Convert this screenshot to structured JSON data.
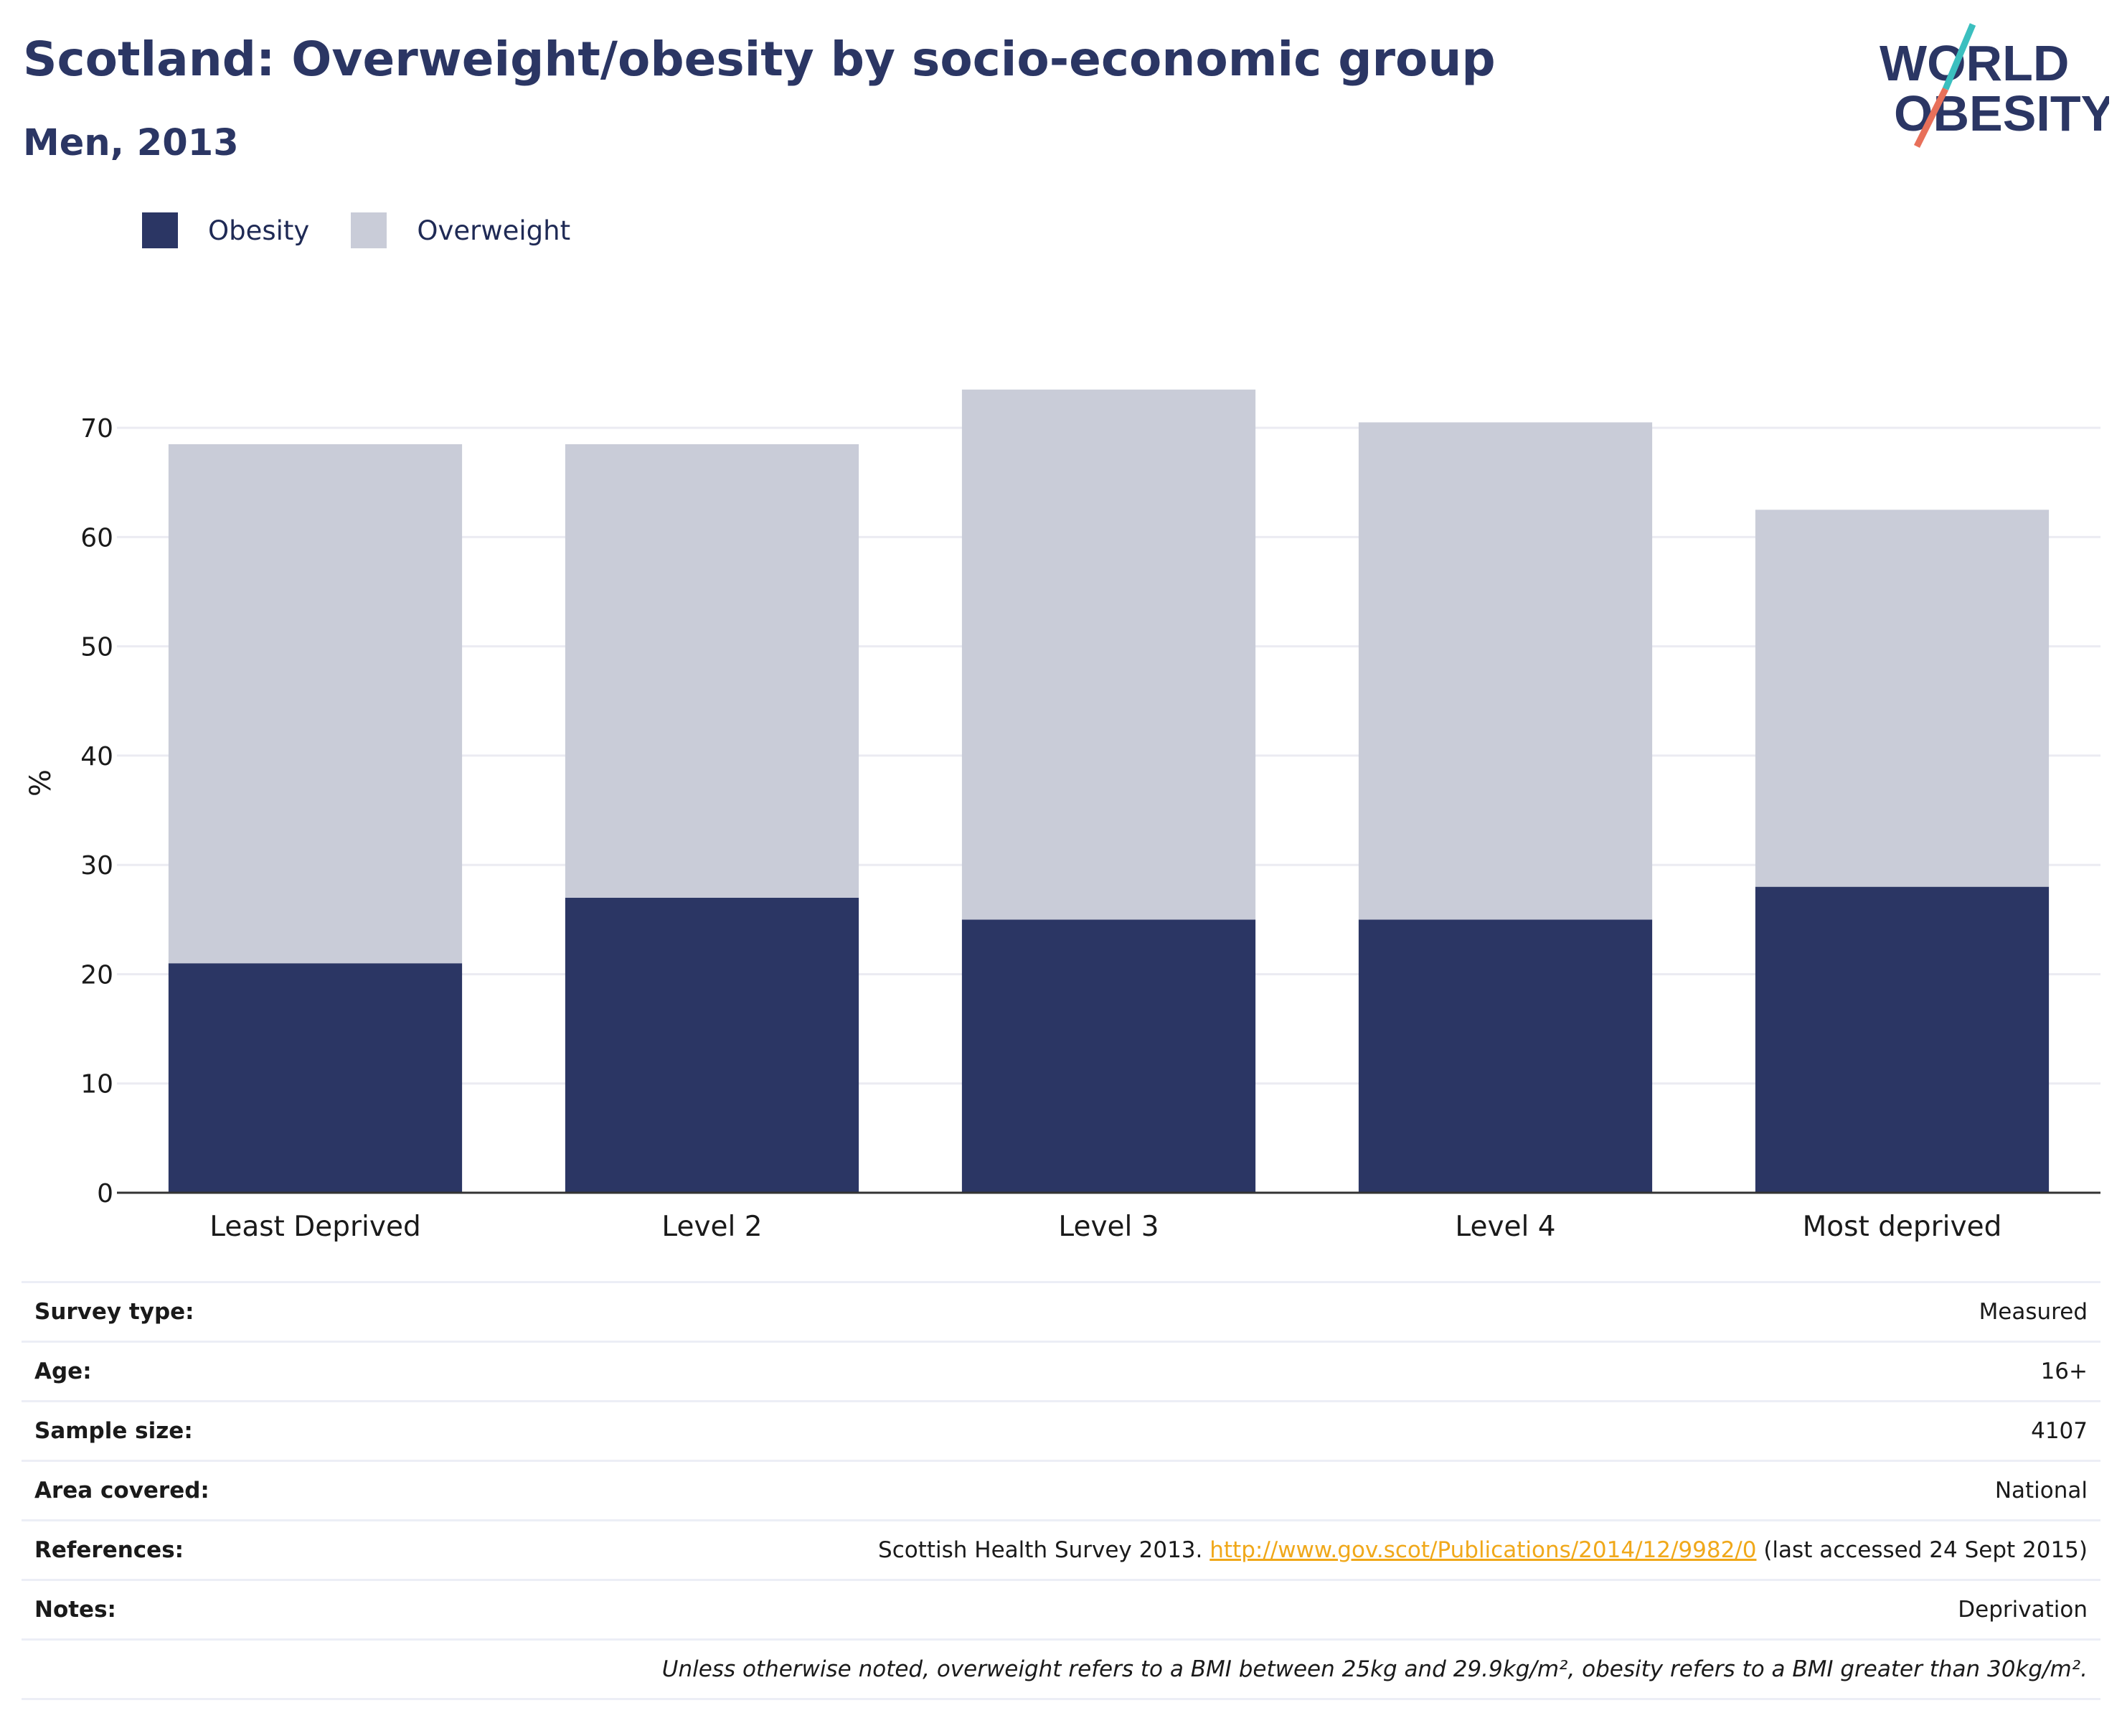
{
  "header": {
    "title": "Scotland: Overweight/obesity by socio-economic group",
    "subtitle": "Men, 2013"
  },
  "logo": {
    "line1": "WORLD",
    "line2": "OBESITY",
    "colors": {
      "text": "#2b3664",
      "slash_top": "#3bbfbf",
      "slash_bottom": "#e8705a"
    }
  },
  "legend": [
    {
      "label": "Obesity",
      "color": "#2b3664"
    },
    {
      "label": "Overweight",
      "color": "#c9ccd8"
    }
  ],
  "chart_data": {
    "type": "bar",
    "stacked": true,
    "categories": [
      "Least Deprived",
      "Level 2",
      "Level 3",
      "Level 4",
      "Most deprived"
    ],
    "series": [
      {
        "name": "Obesity",
        "color": "#2b3664",
        "values": [
          21,
          27,
          25,
          25,
          28
        ]
      },
      {
        "name": "Overweight",
        "color": "#c9ccd8",
        "values": [
          47.5,
          41.5,
          48.5,
          45.5,
          34.5
        ]
      }
    ],
    "ylabel": "%",
    "ylim": [
      0,
      75
    ],
    "yticks": [
      0,
      10,
      20,
      30,
      40,
      50,
      60,
      70
    ],
    "grid": true,
    "legend_position": "top-left"
  },
  "info": {
    "rows": [
      {
        "label": "Survey type:",
        "value": "Measured"
      },
      {
        "label": "Age:",
        "value": "16+"
      },
      {
        "label": "Sample size:",
        "value": "4107"
      },
      {
        "label": "Area covered:",
        "value": "National"
      }
    ],
    "references": {
      "label": "References:",
      "prefix": "Scottish Health Survey 2013. ",
      "link": "http://www.gov.scot/Publications/2014/12/9982/0",
      "suffix": " (last accessed 24 Sept 2015)"
    },
    "notes": {
      "label": "Notes:",
      "value": "Deprivation"
    },
    "footnote": "Unless otherwise noted, overweight refers to a BMI between 25kg and 29.9kg/m², obesity refers to a BMI greater than 30kg/m²."
  }
}
